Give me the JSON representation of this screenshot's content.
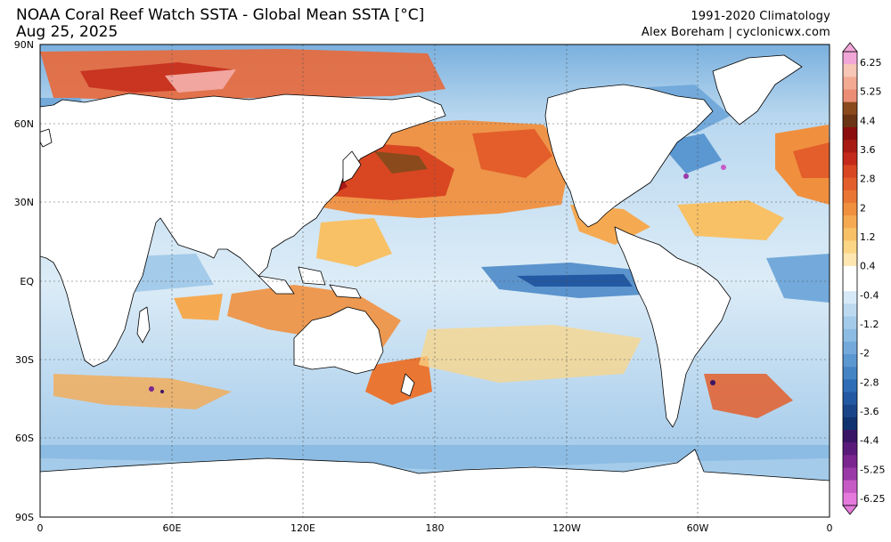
{
  "header": {
    "title": "NOAA Coral Reef Watch SSTA - Global Mean SSTA [°C]",
    "date": "Aug 25, 2025",
    "climatology": "1991-2020 Climatology",
    "credit": "Alex Boreham | cyclonicwx.com"
  },
  "map": {
    "lat_labels": [
      "90N",
      "60N",
      "30N",
      "EQ",
      "30S",
      "60S",
      "90S"
    ],
    "lon_labels": [
      "0",
      "60E",
      "120E",
      "180",
      "120W",
      "60W",
      "0"
    ],
    "land_color": "#ffffff",
    "coast_color": "#000000"
  },
  "colorbar": {
    "labels": [
      "6.25",
      "5.25",
      "4.4",
      "3.6",
      "2.8",
      "2",
      "1.2",
      "0.4",
      "-0.4",
      "-1.2",
      "-2",
      "-2.8",
      "-3.6",
      "-4.4",
      "-5.25",
      "-6.25"
    ],
    "colors": [
      "#f2a6d8",
      "#f7c6b6",
      "#f3aa92",
      "#eb8c74",
      "#8a4a1c",
      "#6b3414",
      "#8b0d0d",
      "#a81a14",
      "#c42a1a",
      "#d94722",
      "#e35e2a",
      "#ea7634",
      "#f0903f",
      "#f5aa52",
      "#f8c166",
      "#fbd687",
      "#fde6b0",
      "#ffffff",
      "#ffffff",
      "#d6e9f6",
      "#bcd9f0",
      "#a4cbea",
      "#8cbce3",
      "#73aadb",
      "#5b97d1",
      "#4484c5",
      "#2f6eb6",
      "#2358a2",
      "#1a4589",
      "#10336f",
      "#3a1566",
      "#5a1a7a",
      "#7a2590",
      "#9a3aa8",
      "#c75bc6",
      "#e47adc"
    ]
  }
}
